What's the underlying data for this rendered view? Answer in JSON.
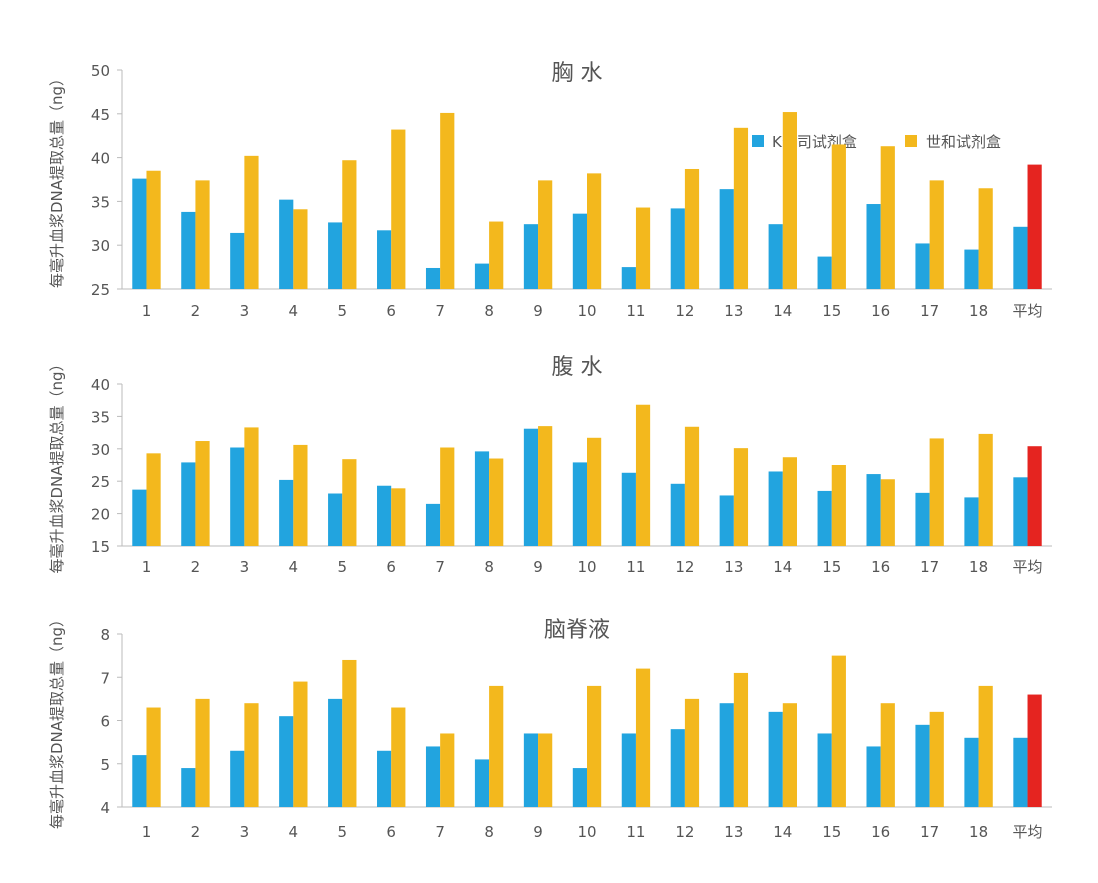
{
  "legend": {
    "series_a": "K公司试剂盒",
    "series_b": "世和试剂盒"
  },
  "colors": {
    "series_a": "#22A4DF",
    "series_b": "#F3B81D",
    "average_b": "#E52420",
    "axis": "#BBBBBB",
    "text": "#555555"
  },
  "chart_data": [
    {
      "type": "bar",
      "title": "胸 水",
      "ylabel": "每毫升血浆DNA提取总量（ng）",
      "ylim": [
        25,
        50
      ],
      "yticks": [
        "25",
        "30",
        "35",
        "40",
        "45",
        "50"
      ],
      "categories": [
        "1",
        "2",
        "3",
        "4",
        "5",
        "6",
        "7",
        "8",
        "9",
        "10",
        "11",
        "12",
        "13",
        "14",
        "15",
        "16",
        "17",
        "18",
        "平均"
      ],
      "series": [
        {
          "name": "K公司试剂盒",
          "values": [
            37.6,
            33.8,
            31.4,
            35.2,
            32.6,
            31.7,
            27.4,
            27.9,
            32.4,
            33.6,
            27.5,
            34.2,
            36.4,
            32.4,
            28.7,
            34.7,
            30.2,
            29.5,
            32.1
          ]
        },
        {
          "name": "世和试剂盒",
          "values": [
            38.5,
            37.4,
            40.2,
            34.1,
            39.7,
            43.2,
            45.1,
            32.7,
            37.4,
            38.2,
            34.3,
            38.7,
            43.4,
            45.2,
            41.5,
            41.3,
            37.4,
            36.5,
            39.2
          ]
        }
      ],
      "legend_position": "top-right"
    },
    {
      "type": "bar",
      "title": "腹 水",
      "ylabel": "每毫升血浆DNA提取总量（ng）",
      "ylim": [
        15,
        40
      ],
      "yticks": [
        "15",
        "20",
        "25",
        "30",
        "35",
        "40"
      ],
      "categories": [
        "1",
        "2",
        "3",
        "4",
        "5",
        "6",
        "7",
        "8",
        "9",
        "10",
        "11",
        "12",
        "13",
        "14",
        "15",
        "16",
        "17",
        "18",
        "平均"
      ],
      "series": [
        {
          "name": "K公司试剂盒",
          "values": [
            23.7,
            27.9,
            30.2,
            25.2,
            23.1,
            24.3,
            21.5,
            29.6,
            33.1,
            27.9,
            26.3,
            24.6,
            22.8,
            26.5,
            23.5,
            26.1,
            23.2,
            22.5,
            25.6
          ]
        },
        {
          "name": "世和试剂盒",
          "values": [
            29.3,
            31.2,
            33.3,
            30.6,
            28.4,
            23.9,
            30.2,
            28.5,
            33.5,
            31.7,
            36.8,
            33.4,
            30.1,
            28.7,
            27.5,
            25.3,
            31.6,
            32.3,
            30.4
          ]
        }
      ]
    },
    {
      "type": "bar",
      "title": "脑脊液",
      "ylabel": "每毫升血浆DNA提取总量（ng）",
      "ylim": [
        4,
        8
      ],
      "yticks": [
        "4",
        "5",
        "6",
        "7",
        "8"
      ],
      "categories": [
        "1",
        "2",
        "3",
        "4",
        "5",
        "6",
        "7",
        "8",
        "9",
        "10",
        "11",
        "12",
        "13",
        "14",
        "15",
        "16",
        "17",
        "18",
        "平均"
      ],
      "series": [
        {
          "name": "K公司试剂盒",
          "values": [
            5.2,
            4.9,
            5.3,
            6.1,
            6.5,
            5.3,
            5.4,
            5.1,
            5.7,
            4.9,
            5.7,
            5.8,
            6.4,
            6.2,
            5.7,
            5.4,
            5.9,
            5.6,
            5.6
          ]
        },
        {
          "name": "世和试剂盒",
          "values": [
            6.3,
            6.5,
            6.4,
            6.9,
            7.4,
            6.3,
            5.7,
            6.8,
            5.7,
            6.8,
            7.2,
            6.5,
            7.1,
            6.4,
            7.5,
            6.4,
            6.2,
            6.8,
            6.6
          ]
        }
      ]
    }
  ]
}
